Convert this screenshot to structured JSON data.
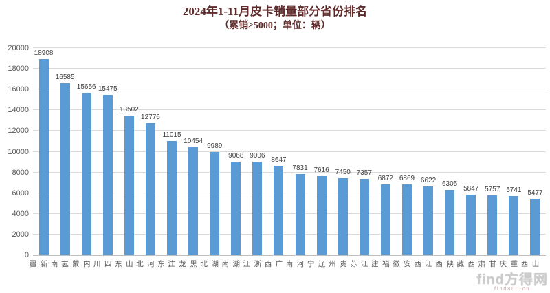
{
  "title": {
    "line1": "2024年1-11月皮卡销量部分省份排名",
    "line2": "（累销≥5000；单位：辆）"
  },
  "watermark": {
    "logo": "find",
    "brand": "方得网",
    "sub": "find800.cn"
  },
  "colors": {
    "bar": "#5b9bd5",
    "grid": "#d9d9d9",
    "axis": "#bfbfbf",
    "title": "#5e2a2a",
    "axis_label": "#595959",
    "data_label": "#404040"
  },
  "chart_data": {
    "type": "bar",
    "title": "2024年1-11月皮卡销量部分省份排名",
    "subtitle": "（累销≥5000；单位：辆）",
    "categories": [
      "新疆",
      "云南",
      "内蒙古",
      "四川",
      "山东",
      "河北",
      "广东",
      "黑龙江",
      "湖北",
      "湖南",
      "浙江",
      "广西",
      "河南",
      "辽宁",
      "贵州",
      "江苏",
      "福建",
      "安徽",
      "江西",
      "陕西",
      "西藏",
      "甘肃",
      "重庆",
      "山西"
    ],
    "values": [
      18908,
      16585,
      15656,
      15475,
      13502,
      12776,
      11015,
      10454,
      9989,
      9068,
      9006,
      8647,
      7831,
      7616,
      7450,
      7357,
      6872,
      6869,
      6622,
      6305,
      5847,
      5757,
      5741,
      5477
    ],
    "xlabel": "",
    "ylabel": "",
    "ylim": [
      0,
      20000
    ],
    "ytick_step": 2000,
    "grid": true,
    "legend": false,
    "data_labels": true
  }
}
